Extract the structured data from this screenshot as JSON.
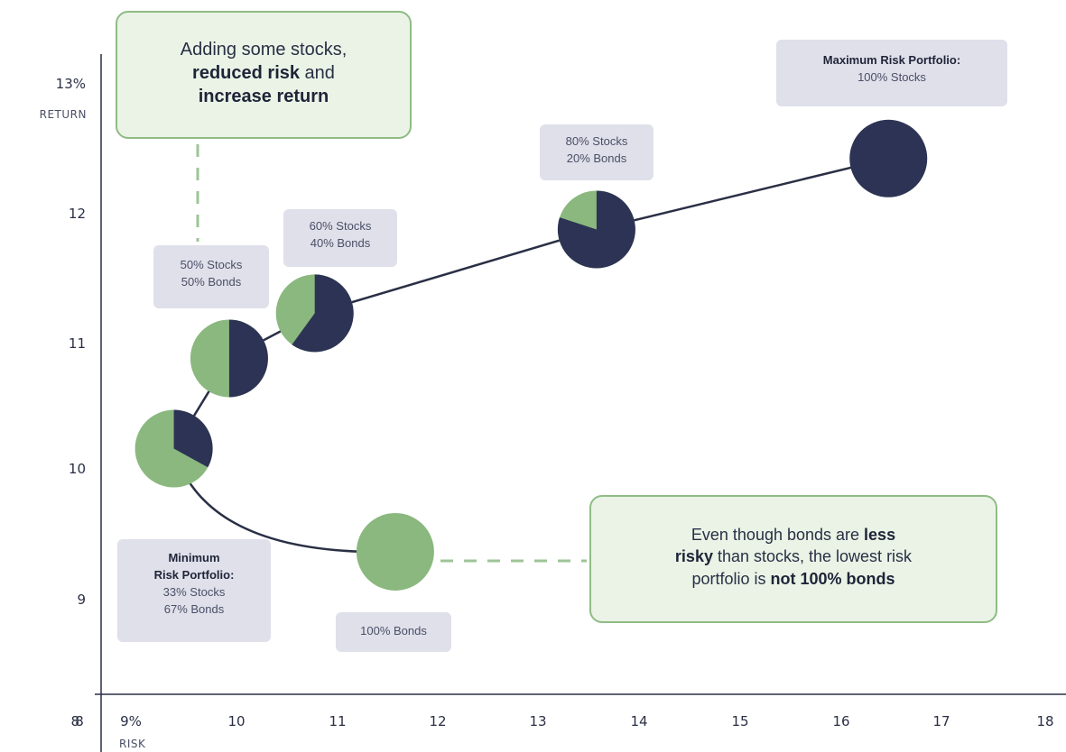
{
  "chart_data": {
    "type": "scatter",
    "x_axis": {
      "tick_labels": [
        "8",
        "9%",
        "10",
        "11",
        "12",
        "13",
        "14",
        "15",
        "16",
        "17",
        "18"
      ],
      "unit_label": "RISK",
      "range": [
        8,
        18
      ]
    },
    "y_axis": {
      "tick_labels": [
        "8",
        "9",
        "10",
        "11",
        "12",
        "13%"
      ],
      "unit_label": "RETURN",
      "range": [
        8,
        13
      ]
    },
    "points": [
      {
        "x": 11.6,
        "y": 9.35,
        "stocks_pct": 0,
        "bonds_pct": 100
      },
      {
        "x": 9.4,
        "y": 10.15,
        "stocks_pct": 33,
        "bonds_pct": 67
      },
      {
        "x": 9.95,
        "y": 10.85,
        "stocks_pct": 50,
        "bonds_pct": 50
      },
      {
        "x": 10.8,
        "y": 11.2,
        "stocks_pct": 60,
        "bonds_pct": 40
      },
      {
        "x": 13.6,
        "y": 11.85,
        "stocks_pct": 80,
        "bonds_pct": 20
      },
      {
        "x": 16.5,
        "y": 12.4,
        "stocks_pct": 100,
        "bonds_pct": 0
      }
    ],
    "colors": {
      "stocks": "#2d3354",
      "bonds": "#8ab87f",
      "line": "#2a2f45",
      "dash": "#9ec497"
    }
  },
  "labels": {
    "min_risk": {
      "title_1": "Minimum",
      "title_2": "Risk Portfolio:",
      "line_1": "33% Stocks",
      "line_2": "67% Bonds"
    },
    "p50": {
      "line_1": "50% Stocks",
      "line_2": "50% Bonds"
    },
    "p60": {
      "line_1": "60% Stocks",
      "line_2": "40% Bonds"
    },
    "p80": {
      "line_1": "80% Stocks",
      "line_2": "20% Bonds"
    },
    "max_risk": {
      "title": "Maximum Risk Portfolio:",
      "line_1": "100% Stocks"
    },
    "bonds100": {
      "line_1": "100% Bonds"
    }
  },
  "callouts": {
    "top": {
      "line_1": "Adding some stocks,",
      "bold_1": "reduced risk",
      "text_2": " and",
      "bold_2": "increase return"
    },
    "bottom": {
      "text_1": "Even though bonds are ",
      "bold_1": "less",
      "bold_2": "risky",
      "text_2": " than stocks, the lowest risk",
      "text_3": "portfolio is ",
      "bold_3": "not 100% bonds"
    }
  }
}
